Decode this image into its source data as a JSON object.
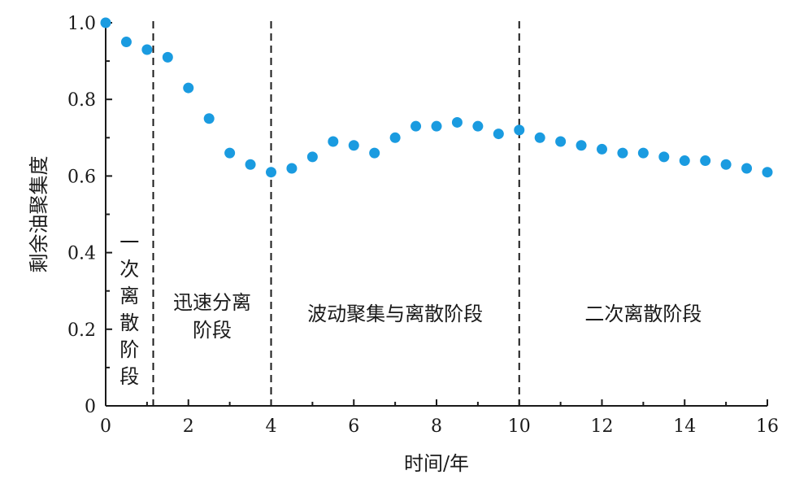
{
  "chart_data": {
    "type": "scatter",
    "title": "",
    "xlabel": "时间/年",
    "ylabel": "剩余油聚集度",
    "xlim": [
      0,
      16
    ],
    "ylim": [
      0,
      1.0
    ],
    "x_ticks": [
      "0",
      "2",
      "4",
      "6",
      "8",
      "10",
      "12",
      "14",
      "16"
    ],
    "y_ticks": [
      "0",
      "0.2",
      "0.4",
      "0.6",
      "0.8",
      "1.0"
    ],
    "grid": false,
    "point_color": "#1a9be0",
    "series": [
      {
        "x": [
          0,
          0.5,
          1.0,
          1.5,
          2.0,
          2.5,
          3.0,
          3.5,
          4.0,
          4.5,
          5.0,
          5.5,
          6.0,
          6.5,
          7.0,
          7.5,
          8.0,
          8.5,
          9.0,
          9.5,
          10.0,
          10.5,
          11.0,
          11.5,
          12.0,
          12.5,
          13.0,
          13.5,
          14.0,
          14.5,
          15.0,
          15.5,
          16.0
        ],
        "y": [
          1.0,
          0.95,
          0.93,
          0.91,
          0.83,
          0.75,
          0.66,
          0.63,
          0.61,
          0.62,
          0.65,
          0.69,
          0.68,
          0.66,
          0.7,
          0.73,
          0.73,
          0.74,
          0.73,
          0.71,
          0.72,
          0.7,
          0.69,
          0.68,
          0.67,
          0.66,
          0.66,
          0.65,
          0.64,
          0.64,
          0.63,
          0.62,
          0.61
        ]
      }
    ],
    "dividers": [
      1.15,
      4.0,
      10.0
    ],
    "phases": [
      {
        "label": "一次离散阶段"
      },
      {
        "label": "迅速分离阶段"
      },
      {
        "label": "波动聚集与离散阶段"
      },
      {
        "label": "二次离散阶段"
      }
    ]
  }
}
